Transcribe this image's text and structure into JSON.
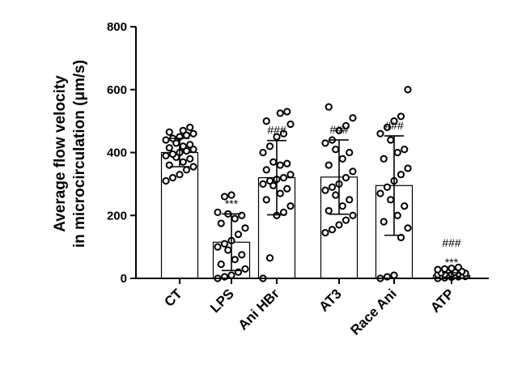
{
  "chart_data": {
    "type": "bar",
    "title": "",
    "xlabel": "",
    "ylabel_line1": "Average flow velocity",
    "ylabel_line2": "in microcirculation (μm/s)",
    "ylim": [
      0,
      800
    ],
    "yticks": [
      0,
      200,
      400,
      600,
      800
    ],
    "grid": false,
    "error_bars": "SD",
    "colors": {
      "bar_fill": "#ffffff",
      "bar_stroke": "#000000",
      "point_stroke": "#000000",
      "point_fill": "#ffffff"
    },
    "categories": [
      "CT",
      "LPS",
      "Ani HBr",
      "AT3",
      "Race Ani",
      "ATP"
    ],
    "values": [
      400,
      115,
      320,
      322,
      295,
      10
    ],
    "errors": [
      45,
      90,
      118,
      118,
      158,
      8
    ],
    "annotations": [
      {
        "category": "LPS",
        "lines": [
          "***"
        ]
      },
      {
        "category": "Ani HBr",
        "lines": [
          "###"
        ]
      },
      {
        "category": "AT3",
        "lines": [
          "###"
        ]
      },
      {
        "category": "Race Ani",
        "lines": [
          "###"
        ]
      },
      {
        "category": "ATP",
        "lines": [
          "###",
          "***"
        ]
      }
    ],
    "points": [
      [
        310,
        320,
        330,
        345,
        355,
        360,
        370,
        380,
        385,
        390,
        395,
        400,
        405,
        410,
        415,
        420,
        425,
        430,
        440,
        445,
        450,
        455,
        460,
        465,
        470,
        480
      ],
      [
        0,
        5,
        10,
        20,
        30,
        45,
        60,
        75,
        90,
        100,
        110,
        120,
        140,
        160,
        175,
        190,
        200,
        205,
        210,
        260,
        265
      ],
      [
        0,
        65,
        200,
        210,
        230,
        250,
        270,
        285,
        295,
        300,
        310,
        315,
        320,
        330,
        345,
        360,
        365,
        370,
        400,
        420,
        450,
        460,
        490,
        500,
        525,
        530
      ],
      [
        145,
        155,
        170,
        185,
        200,
        215,
        230,
        250,
        265,
        280,
        290,
        300,
        320,
        340,
        360,
        380,
        400,
        410,
        430,
        440,
        470,
        485,
        510,
        545
      ],
      [
        0,
        5,
        10,
        130,
        160,
        180,
        200,
        230,
        250,
        270,
        290,
        310,
        330,
        350,
        380,
        400,
        410,
        440,
        460,
        480,
        500,
        515,
        600
      ],
      [
        0,
        2,
        4,
        5,
        6,
        8,
        9,
        10,
        11,
        12,
        13,
        14,
        15,
        16,
        18,
        20,
        22,
        25,
        28,
        30,
        32,
        35
      ]
    ]
  }
}
